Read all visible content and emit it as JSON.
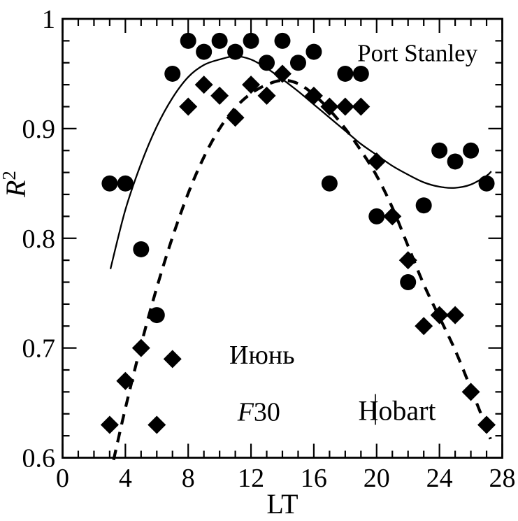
{
  "figure": {
    "background": "#ffffff",
    "ink_color": "#000000"
  },
  "chart_data": {
    "type": "scatter",
    "title": "",
    "xlabel": "LT",
    "ylabel": "R2",
    "ylabel_parts": [
      {
        "text": "R",
        "style": "italic"
      },
      {
        "text": "2",
        "sup": true
      }
    ],
    "xlim": [
      0,
      28
    ],
    "ylim": [
      0.6,
      1.0
    ],
    "x_major_ticks": [
      0,
      4,
      8,
      12,
      16,
      20,
      24,
      28
    ],
    "x_minor_step": 1,
    "y_major_ticks": [
      {
        "v": 1.0,
        "label": "1"
      },
      {
        "v": 0.9,
        "label": "0.9"
      },
      {
        "v": 0.8,
        "label": "0.8"
      },
      {
        "v": 0.7,
        "label": "0.7"
      },
      {
        "v": 0.6,
        "label": "0.6"
      }
    ],
    "y_minor_step": 0.02,
    "grid": false,
    "legend_position": "in-plot text annotations",
    "series": [
      {
        "name": "Port Stanley",
        "marker": "circle",
        "fit_style": "solid",
        "points": [
          [
            3,
            0.85
          ],
          [
            4,
            0.85
          ],
          [
            5,
            0.79
          ],
          [
            6,
            0.73
          ],
          [
            7,
            0.95
          ],
          [
            8,
            0.98
          ],
          [
            9,
            0.97
          ],
          [
            10,
            0.98
          ],
          [
            11,
            0.97
          ],
          [
            12,
            0.98
          ],
          [
            13,
            0.96
          ],
          [
            14,
            0.98
          ],
          [
            15,
            0.96
          ],
          [
            16,
            0.97
          ],
          [
            17,
            0.85
          ],
          [
            18,
            0.95
          ],
          [
            19,
            0.95
          ],
          [
            20,
            0.82
          ],
          [
            22,
            0.76
          ],
          [
            23,
            0.83
          ],
          [
            24,
            0.88
          ],
          [
            25,
            0.87
          ],
          [
            26,
            0.88
          ],
          [
            27,
            0.85
          ]
        ],
        "fit_curve": [
          [
            3.05,
            0.772
          ],
          [
            4,
            0.826
          ],
          [
            5,
            0.868
          ],
          [
            6,
            0.902
          ],
          [
            7,
            0.928
          ],
          [
            8,
            0.947
          ],
          [
            9,
            0.958
          ],
          [
            10,
            0.963
          ],
          [
            11,
            0.966
          ],
          [
            12,
            0.963
          ],
          [
            13,
            0.955
          ],
          [
            14,
            0.945
          ],
          [
            15,
            0.934
          ],
          [
            16,
            0.922
          ],
          [
            17,
            0.91
          ],
          [
            18,
            0.898
          ],
          [
            19,
            0.886
          ],
          [
            20,
            0.876
          ],
          [
            21,
            0.866
          ],
          [
            22,
            0.858
          ],
          [
            23,
            0.851
          ],
          [
            24,
            0.847
          ],
          [
            25,
            0.846
          ],
          [
            26,
            0.849
          ],
          [
            27,
            0.857
          ],
          [
            27.3,
            0.861
          ]
        ]
      },
      {
        "name": "Hobart",
        "marker": "diamond",
        "fit_style": "dashed",
        "points": [
          [
            3,
            0.63
          ],
          [
            4,
            0.67
          ],
          [
            5,
            0.7
          ],
          [
            6,
            0.63
          ],
          [
            7,
            0.69
          ],
          [
            8,
            0.92
          ],
          [
            9,
            0.94
          ],
          [
            10,
            0.93
          ],
          [
            11,
            0.91
          ],
          [
            12,
            0.94
          ],
          [
            13,
            0.93
          ],
          [
            14,
            0.95
          ],
          [
            16,
            0.93
          ],
          [
            17,
            0.92
          ],
          [
            18,
            0.92
          ],
          [
            19,
            0.92
          ],
          [
            20,
            0.87
          ],
          [
            21,
            0.82
          ],
          [
            22,
            0.78
          ],
          [
            23,
            0.72
          ],
          [
            24,
            0.73
          ],
          [
            25,
            0.73
          ],
          [
            26,
            0.66
          ],
          [
            27,
            0.63
          ]
        ],
        "fit_curve": [
          [
            3.25,
            0.598
          ],
          [
            4,
            0.645
          ],
          [
            5,
            0.703
          ],
          [
            6,
            0.755
          ],
          [
            7,
            0.801
          ],
          [
            8,
            0.841
          ],
          [
            9,
            0.874
          ],
          [
            10,
            0.9
          ],
          [
            11,
            0.919
          ],
          [
            12,
            0.932
          ],
          [
            13,
            0.94
          ],
          [
            14,
            0.944
          ],
          [
            15,
            0.941
          ],
          [
            16,
            0.931
          ],
          [
            17,
            0.917
          ],
          [
            18,
            0.9
          ],
          [
            19,
            0.88
          ],
          [
            20,
            0.857
          ],
          [
            21,
            0.828
          ],
          [
            22,
            0.793
          ],
          [
            23,
            0.758
          ],
          [
            24,
            0.728
          ],
          [
            25,
            0.698
          ],
          [
            26,
            0.663
          ],
          [
            27,
            0.627
          ],
          [
            27.25,
            0.617
          ]
        ]
      }
    ],
    "annotations": [
      {
        "id": "port-stanley-label",
        "x": 22.6,
        "y": 0.969,
        "font_px": 35,
        "parts": [
          {
            "text": "Port Stanley"
          }
        ]
      },
      {
        "id": "month-label",
        "x": 12.7,
        "y": 0.694,
        "font_px": 38,
        "parts": [
          {
            "text": "Июнь"
          }
        ]
      },
      {
        "id": "f30-label",
        "x": 12.5,
        "y": 0.642,
        "font_px": 38,
        "parts": [
          {
            "text": "F",
            "style": "italic"
          },
          {
            "text": "30"
          }
        ]
      },
      {
        "id": "hobart-label",
        "x": 21.3,
        "y": 0.643,
        "font_px": 40,
        "parts": [
          {
            "text": "Hobart"
          }
        ]
      }
    ],
    "cursor_mark": {
      "x": 19.92,
      "y_from": 0.63,
      "y_to": 0.658
    }
  }
}
